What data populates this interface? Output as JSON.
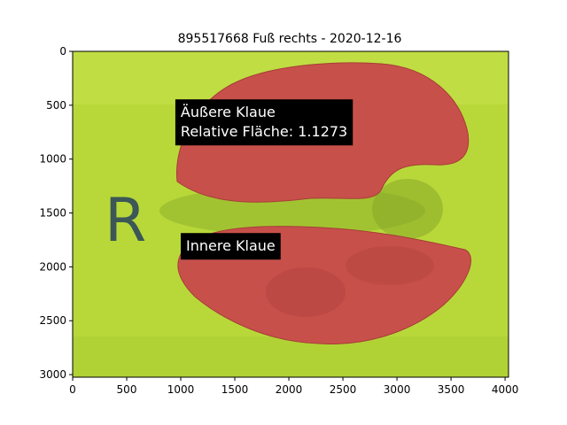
{
  "chart_data": {
    "type": "image",
    "title": "895517668 Fuß rechts - 2020-12-16",
    "xlim": [
      0,
      4032
    ],
    "ylim": [
      3024,
      0
    ],
    "y_inverted": true,
    "xticks": [
      0,
      500,
      1000,
      1500,
      2000,
      2500,
      3000,
      3500,
      4000
    ],
    "yticks": [
      0,
      500,
      1000,
      1500,
      2000,
      2500,
      3000
    ],
    "annotations": [
      {
        "id": "outer",
        "lines": [
          "Äußere Klaue",
          "Relative Fläche: 1.1273"
        ],
        "x": 950,
        "y": 840
      },
      {
        "id": "inner",
        "lines": [
          "Innere Klaue"
        ],
        "x": 1000,
        "y": 1900
      }
    ],
    "image_content": {
      "background_color": "#b8d83a",
      "segment_color": "#c8504a",
      "marker_letter": "R"
    }
  }
}
